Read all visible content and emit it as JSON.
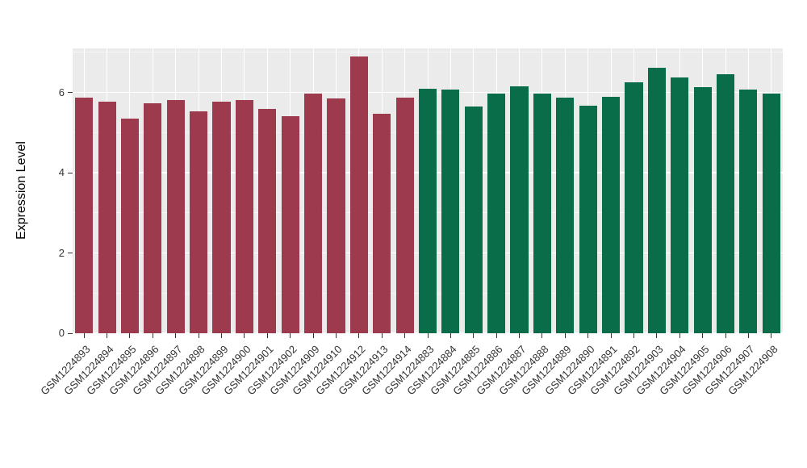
{
  "chart_data": {
    "type": "bar",
    "title": "",
    "xlabel": "",
    "ylabel": "Expression Level",
    "ylim": [
      0,
      7.1
    ],
    "yticks": [
      0,
      2,
      4,
      6
    ],
    "grid": true,
    "legend": "none",
    "panel_bg": "#EBEBEB",
    "grid_color": "#FFFFFF",
    "tick_color": "#333333",
    "categories": [
      "GSM1224893",
      "GSM1224894",
      "GSM1224895",
      "GSM1224896",
      "GSM1224897",
      "GSM1224898",
      "GSM1224899",
      "GSM1224900",
      "GSM1224901",
      "GSM1224902",
      "GSM1224909",
      "GSM1224910",
      "GSM1224912",
      "GSM1224913",
      "GSM1224914",
      "GSM1224883",
      "GSM1224884",
      "GSM1224885",
      "GSM1224886",
      "GSM1224887",
      "GSM1224888",
      "GSM1224889",
      "GSM1224890",
      "GSM1224891",
      "GSM1224892",
      "GSM1224903",
      "GSM1224904",
      "GSM1224905",
      "GSM1224906",
      "GSM1224907",
      "GSM1224908"
    ],
    "values": [
      5.88,
      5.78,
      5.35,
      5.73,
      5.81,
      5.53,
      5.78,
      5.81,
      5.6,
      5.42,
      5.98,
      5.85,
      6.9,
      5.48,
      5.88,
      6.1,
      6.08,
      5.65,
      5.97,
      6.15,
      5.97,
      5.88,
      5.67,
      5.9,
      6.25,
      6.62,
      6.38,
      6.13,
      6.45,
      6.08,
      5.97
    ],
    "groups": [
      "group1",
      "group1",
      "group1",
      "group1",
      "group1",
      "group1",
      "group1",
      "group1",
      "group1",
      "group1",
      "group1",
      "group1",
      "group1",
      "group1",
      "group1",
      "group2",
      "group2",
      "group2",
      "group2",
      "group2",
      "group2",
      "group2",
      "group2",
      "group2",
      "group2",
      "group2",
      "group2",
      "group2",
      "group2",
      "group2",
      "group2"
    ],
    "group_colors": {
      "group1": "#9E3A4E",
      "group2": "#0A6D49"
    }
  }
}
